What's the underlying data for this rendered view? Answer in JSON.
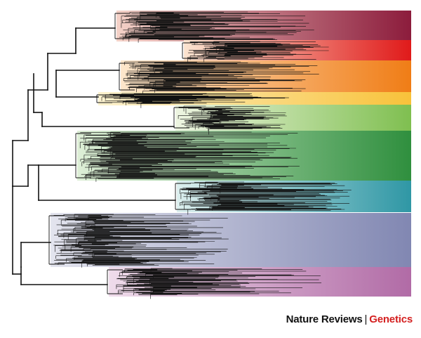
{
  "figure": {
    "kind": "phylogenetic-tree",
    "clades": [
      {
        "id": "clade-1",
        "from": "#f4d2c8",
        "to": "#8c1c3c"
      },
      {
        "id": "clade-2",
        "from": "#fbe4d0",
        "to": "#e01a1a"
      },
      {
        "id": "clade-3",
        "from": "#fde7cc",
        "to": "#f07d16"
      },
      {
        "id": "clade-4",
        "from": "#fdf3d0",
        "to": "#f8c23a"
      },
      {
        "id": "clade-5",
        "from": "#eef5e2",
        "to": "#7fbf50"
      },
      {
        "id": "clade-6",
        "from": "#deefd7",
        "to": "#2f8f3e"
      },
      {
        "id": "clade-7",
        "from": "#dcefee",
        "to": "#2f97a5"
      },
      {
        "id": "clade-8",
        "from": "#e3e4ee",
        "to": "#8187b2"
      },
      {
        "id": "clade-9",
        "from": "#efdceb",
        "to": "#b16ba6"
      }
    ]
  },
  "credit": {
    "journal": "Nature Reviews",
    "separator": "|",
    "section": "Genetics",
    "journal_color": "#111111",
    "section_color": "#d42020"
  }
}
